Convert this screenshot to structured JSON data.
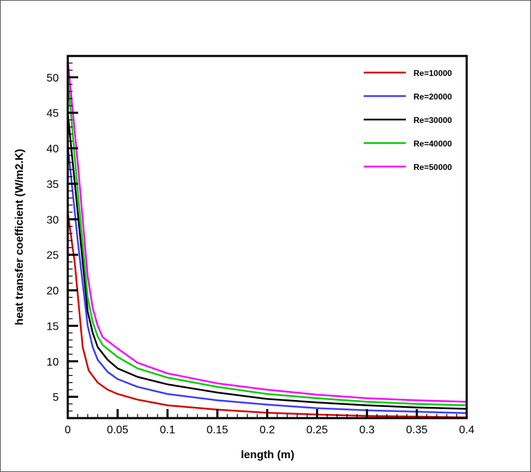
{
  "chart_data": {
    "type": "line",
    "title": "",
    "xlabel": "length (m)",
    "ylabel": "heat transfer coefficient (W/m2.K)",
    "xlim": [
      0,
      0.4
    ],
    "ylim": [
      2,
      53
    ],
    "x_ticks": [
      "0",
      "0.05",
      "0.1",
      "0.15",
      "0.2",
      "0.25",
      "0.3",
      "0.35",
      "0.4"
    ],
    "y_ticks": [
      "5",
      "10",
      "15",
      "20",
      "25",
      "30",
      "35",
      "40",
      "45",
      "50"
    ],
    "grid": false,
    "legend_position": "upper right (inside)",
    "series": [
      {
        "name": "Re=10000",
        "color": "#d40000",
        "x": [
          0,
          0.007,
          0.015,
          0.021,
          0.03,
          0.04,
          0.05,
          0.07,
          0.1,
          0.15,
          0.2,
          0.25,
          0.3,
          0.35,
          0.4
        ],
        "values": [
          31,
          23.9,
          12,
          8.7,
          7,
          6,
          5.4,
          4.6,
          3.8,
          3.2,
          2.75,
          2.5,
          2.3,
          2.2,
          2.1
        ]
      },
      {
        "name": "Re=20000",
        "color": "#3a3aff",
        "x": [
          0,
          0.01,
          0.02,
          0.025,
          0.03,
          0.04,
          0.05,
          0.07,
          0.1,
          0.15,
          0.2,
          0.25,
          0.3,
          0.35,
          0.4
        ],
        "values": [
          40.5,
          27,
          15,
          12,
          10.2,
          8.5,
          7.5,
          6.4,
          5.4,
          4.5,
          3.9,
          3.4,
          3.1,
          2.9,
          2.7
        ]
      },
      {
        "name": "Re=30000",
        "color": "#000000",
        "x": [
          0,
          0.01,
          0.02,
          0.025,
          0.03,
          0.04,
          0.05,
          0.07,
          0.1,
          0.15,
          0.2,
          0.25,
          0.3,
          0.35,
          0.4
        ],
        "values": [
          45,
          31,
          17,
          14,
          12,
          10.2,
          9,
          7.8,
          6.75,
          5.6,
          4.7,
          4.2,
          3.8,
          3.5,
          3.3
        ]
      },
      {
        "name": "Re=40000",
        "color": "#00cc00",
        "x": [
          0,
          0.01,
          0.02,
          0.025,
          0.03,
          0.035,
          0.05,
          0.07,
          0.1,
          0.15,
          0.2,
          0.25,
          0.3,
          0.35,
          0.4
        ],
        "values": [
          50,
          34,
          19,
          15.5,
          13.5,
          12.3,
          10.6,
          9,
          7.7,
          6.4,
          5.4,
          4.8,
          4.3,
          4,
          3.8
        ]
      },
      {
        "name": "Re=50000",
        "color": "#ff00ff",
        "x": [
          0,
          0.01,
          0.02,
          0.025,
          0.03,
          0.035,
          0.05,
          0.07,
          0.1,
          0.15,
          0.2,
          0.25,
          0.3,
          0.35,
          0.4
        ],
        "values": [
          52.5,
          38,
          22,
          17.5,
          15,
          13.4,
          11.8,
          9.8,
          8.3,
          6.9,
          6,
          5.3,
          4.8,
          4.5,
          4.3
        ]
      }
    ]
  }
}
